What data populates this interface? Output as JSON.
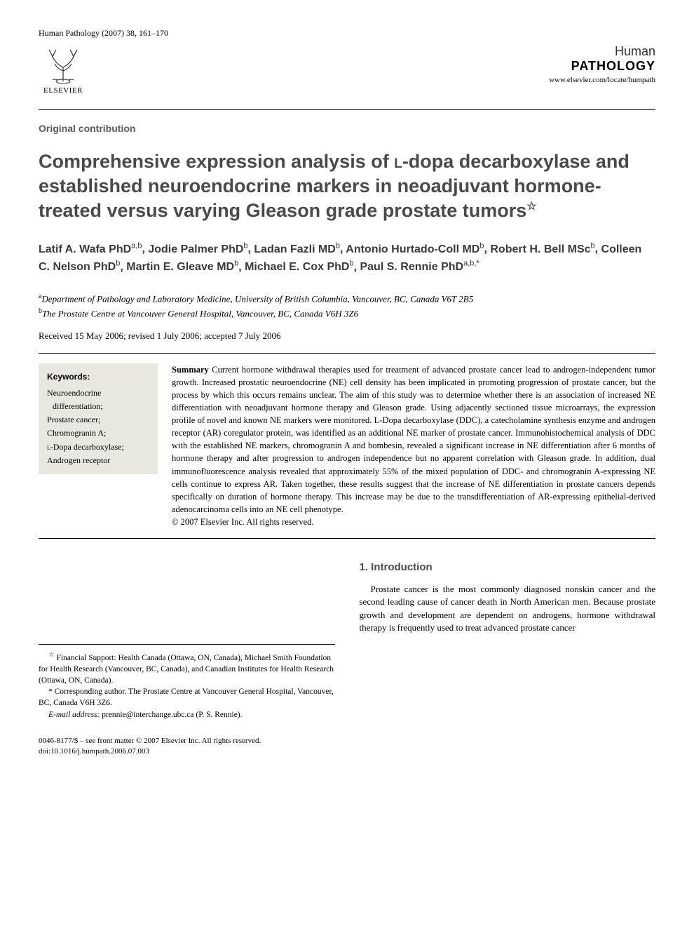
{
  "header": {
    "citation": "Human Pathology (2007) 38, 161–170",
    "publisher_label": "ELSEVIER",
    "journal_name_1": "Human",
    "journal_name_2": "PATHOLOGY",
    "journal_url": "www.elsevier.com/locate/humpath"
  },
  "article_type": "Original contribution",
  "title_prefix": "Comprehensive expression analysis of ",
  "title_smallcaps": "l",
  "title_suffix": "-dopa decarboxylase and established neuroendocrine markers in neoadjuvant hormone-treated versus varying Gleason grade prostate tumors",
  "title_note_mark": "☆",
  "authors": [
    {
      "name": "Latif A. Wafa PhD",
      "affil": "a,b"
    },
    {
      "name": "Jodie Palmer PhD",
      "affil": "b"
    },
    {
      "name": "Ladan Fazli MD",
      "affil": "b"
    },
    {
      "name": "Antonio Hurtado-Coll MD",
      "affil": "b"
    },
    {
      "name": "Robert H. Bell MSc",
      "affil": "b"
    },
    {
      "name": "Colleen C. Nelson PhD",
      "affil": "b"
    },
    {
      "name": "Martin E. Gleave MD",
      "affil": "b"
    },
    {
      "name": "Michael E. Cox PhD",
      "affil": "b"
    },
    {
      "name": "Paul S. Rennie PhD",
      "affil": "a,b,*"
    }
  ],
  "affiliations": {
    "a": "Department of Pathology and Laboratory Medicine, University of British Columbia, Vancouver, BC, Canada V6T 2B5",
    "b": "The Prostate Centre at Vancouver General Hospital, Vancouver, BC, Canada V6H 3Z6"
  },
  "dates": "Received 15 May 2006; revised 1 July 2006; accepted 7 July 2006",
  "keywords_heading": "Keywords:",
  "keywords": [
    "Neuroendocrine differentiation;",
    "Prostate cancer;",
    "Chromogranin A;",
    "L-Dopa decarboxylase;",
    "Androgen receptor"
  ],
  "summary_label": "Summary",
  "summary": "Current hormone withdrawal therapies used for treatment of advanced prostate cancer lead to androgen-independent tumor growth. Increased prostatic neuroendocrine (NE) cell density has been implicated in promoting progression of prostate cancer, but the process by which this occurs remains unclear. The aim of this study was to determine whether there is an association of increased NE differentiation with neoadjuvant hormone therapy and Gleason grade. Using adjacently sectioned tissue microarrays, the expression profile of novel and known NE markers were monitored. L-Dopa decarboxylase (DDC), a catecholamine synthesis enzyme and androgen receptor (AR) coregulator protein, was identified as an additional NE marker of prostate cancer. Immunohistochemical analysis of DDC with the established NE markers, chromogranin A and bombesin, revealed a significant increase in NE differentiation after 6 months of hormone therapy and after progression to androgen independence but no apparent correlation with Gleason grade. In addition, dual immunofluorescence analysis revealed that approximately 55% of the mixed population of DDC- and chromogranin A-expressing NE cells continue to express AR. Taken together, these results suggest that the increase of NE differentiation in prostate cancers depends specifically on duration of hormone therapy. This increase may be due to the transdifferentiation of AR-expressing epithelial-derived adenocarcinoma cells into an NE cell phenotype.",
  "copyright_line": "© 2007 Elsevier Inc. All rights reserved.",
  "footnotes": {
    "funding_mark": "☆",
    "funding": "Financial Support: Health Canada (Ottawa, ON, Canada), Michael Smith Foundation for Health Research (Vancouver, BC, Canada), and Canadian Institutes for Health Research (Ottawa, ON, Canada).",
    "corresponding_mark": "*",
    "corresponding": "Corresponding author. The Prostate Centre at Vancouver General Hospital, Vancouver, BC, Canada V6H 3Z6.",
    "email_label": "E-mail address:",
    "email": "prennie@interchange.ubc.ca (P. S. Rennie)."
  },
  "intro": {
    "heading": "1. Introduction",
    "text": "Prostate cancer is the most commonly diagnosed nonskin cancer and the second leading cause of cancer death in North American men. Because prostate growth and development are dependent on androgens, hormone withdrawal therapy is frequently used to treat advanced prostate cancer"
  },
  "bottom": {
    "issn_line": "0046-8177/$ – see front matter © 2007 Elsevier Inc. All rights reserved.",
    "doi_line": "doi:10.1016/j.humpath.2006.07.003"
  },
  "colors": {
    "heading_gray": "#4a4a4a",
    "keywords_bg": "#e8e8e0",
    "text": "#000000"
  }
}
